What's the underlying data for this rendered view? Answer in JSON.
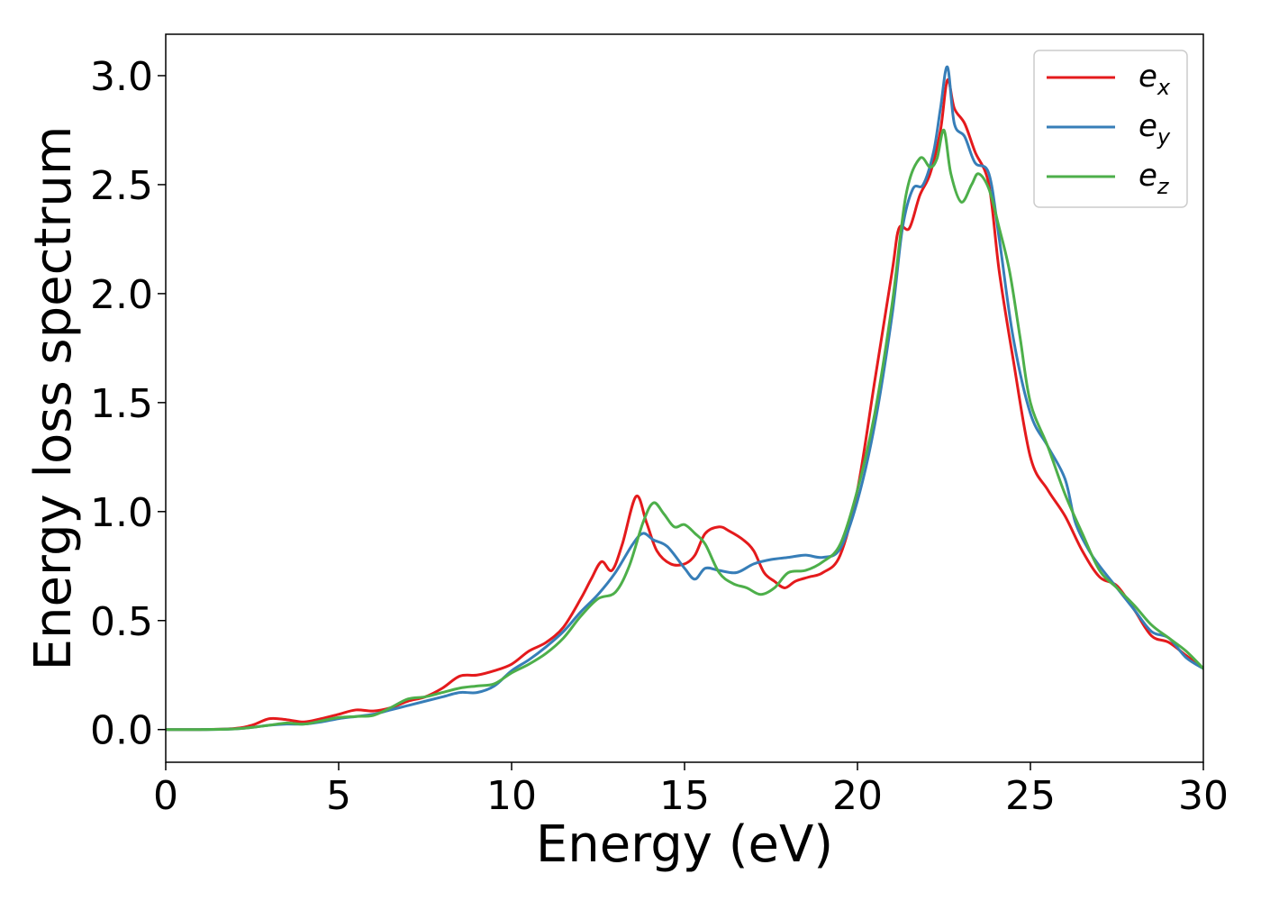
{
  "chart_data": {
    "type": "line",
    "xlabel": "Energy (eV)",
    "ylabel": "Energy loss spectrum",
    "xlim": [
      0,
      30
    ],
    "ylim": [
      -0.15,
      3.19
    ],
    "xticks": [
      0,
      5,
      10,
      15,
      20,
      25,
      30
    ],
    "yticks": [
      0.0,
      0.5,
      1.0,
      1.5,
      2.0,
      2.5,
      3.0
    ],
    "xtick_labels": [
      "0",
      "5",
      "10",
      "15",
      "20",
      "25",
      "30"
    ],
    "ytick_labels": [
      "0.0",
      "0.5",
      "1.0",
      "1.5",
      "2.0",
      "2.5",
      "3.0"
    ],
    "grid": false,
    "legend": "top-right",
    "series": [
      {
        "name": "e_x",
        "label_base": "e",
        "label_sub": "x",
        "color": "#e41a1c",
        "points": [
          [
            0,
            0
          ],
          [
            1,
            0
          ],
          [
            2,
            0.005
          ],
          [
            2.5,
            0.02
          ],
          [
            3,
            0.05
          ],
          [
            3.5,
            0.045
          ],
          [
            4,
            0.035
          ],
          [
            4.5,
            0.05
          ],
          [
            5,
            0.07
          ],
          [
            5.5,
            0.09
          ],
          [
            6,
            0.085
          ],
          [
            6.5,
            0.1
          ],
          [
            7,
            0.13
          ],
          [
            7.5,
            0.15
          ],
          [
            8,
            0.19
          ],
          [
            8.5,
            0.245
          ],
          [
            9,
            0.25
          ],
          [
            9.5,
            0.27
          ],
          [
            10,
            0.3
          ],
          [
            10.5,
            0.36
          ],
          [
            11,
            0.4
          ],
          [
            11.5,
            0.47
          ],
          [
            12,
            0.6
          ],
          [
            12.3,
            0.69
          ],
          [
            12.6,
            0.77
          ],
          [
            12.9,
            0.73
          ],
          [
            13.2,
            0.85
          ],
          [
            13.6,
            1.07
          ],
          [
            13.9,
            0.95
          ],
          [
            14.2,
            0.82
          ],
          [
            14.6,
            0.76
          ],
          [
            15,
            0.76
          ],
          [
            15.3,
            0.8
          ],
          [
            15.6,
            0.9
          ],
          [
            16,
            0.93
          ],
          [
            16.3,
            0.91
          ],
          [
            16.7,
            0.87
          ],
          [
            17,
            0.82
          ],
          [
            17.3,
            0.72
          ],
          [
            17.6,
            0.68
          ],
          [
            17.9,
            0.65
          ],
          [
            18.2,
            0.68
          ],
          [
            18.6,
            0.7
          ],
          [
            19,
            0.72
          ],
          [
            19.5,
            0.8
          ],
          [
            20,
            1.1
          ],
          [
            20.5,
            1.6
          ],
          [
            21,
            2.1
          ],
          [
            21.2,
            2.3
          ],
          [
            21.5,
            2.3
          ],
          [
            21.8,
            2.45
          ],
          [
            22.1,
            2.55
          ],
          [
            22.4,
            2.75
          ],
          [
            22.6,
            2.98
          ],
          [
            22.8,
            2.85
          ],
          [
            23.1,
            2.78
          ],
          [
            23.4,
            2.65
          ],
          [
            23.8,
            2.5
          ],
          [
            24.1,
            2.1
          ],
          [
            24.5,
            1.7
          ],
          [
            25,
            1.25
          ],
          [
            25.5,
            1.1
          ],
          [
            26,
            0.98
          ],
          [
            26.5,
            0.82
          ],
          [
            27,
            0.7
          ],
          [
            27.5,
            0.66
          ],
          [
            28,
            0.55
          ],
          [
            28.5,
            0.43
          ],
          [
            29,
            0.4
          ],
          [
            29.5,
            0.34
          ],
          [
            30,
            0.28
          ]
        ]
      },
      {
        "name": "e_y",
        "label_base": "e",
        "label_sub": "y",
        "color": "#377eb8",
        "points": [
          [
            0,
            0
          ],
          [
            1,
            0
          ],
          [
            2,
            0.003
          ],
          [
            2.5,
            0.01
          ],
          [
            3,
            0.02
          ],
          [
            3.5,
            0.025
          ],
          [
            4,
            0.025
          ],
          [
            4.5,
            0.035
          ],
          [
            5,
            0.05
          ],
          [
            5.5,
            0.06
          ],
          [
            6,
            0.07
          ],
          [
            6.5,
            0.09
          ],
          [
            7,
            0.11
          ],
          [
            7.5,
            0.13
          ],
          [
            8,
            0.15
          ],
          [
            8.5,
            0.17
          ],
          [
            9,
            0.17
          ],
          [
            9.5,
            0.2
          ],
          [
            10,
            0.27
          ],
          [
            10.5,
            0.32
          ],
          [
            11,
            0.38
          ],
          [
            11.5,
            0.45
          ],
          [
            12,
            0.54
          ],
          [
            12.5,
            0.62
          ],
          [
            13,
            0.72
          ],
          [
            13.5,
            0.85
          ],
          [
            13.8,
            0.9
          ],
          [
            14.1,
            0.87
          ],
          [
            14.5,
            0.84
          ],
          [
            15,
            0.74
          ],
          [
            15.3,
            0.69
          ],
          [
            15.6,
            0.74
          ],
          [
            16,
            0.73
          ],
          [
            16.5,
            0.72
          ],
          [
            17,
            0.76
          ],
          [
            17.5,
            0.78
          ],
          [
            18,
            0.79
          ],
          [
            18.5,
            0.8
          ],
          [
            19,
            0.79
          ],
          [
            19.5,
            0.83
          ],
          [
            20,
            1.05
          ],
          [
            20.5,
            1.4
          ],
          [
            21,
            1.9
          ],
          [
            21.3,
            2.3
          ],
          [
            21.6,
            2.48
          ],
          [
            21.9,
            2.5
          ],
          [
            22.2,
            2.65
          ],
          [
            22.4,
            2.85
          ],
          [
            22.6,
            3.04
          ],
          [
            22.8,
            2.78
          ],
          [
            23.1,
            2.72
          ],
          [
            23.4,
            2.6
          ],
          [
            23.8,
            2.55
          ],
          [
            24.1,
            2.25
          ],
          [
            24.5,
            1.8
          ],
          [
            25,
            1.45
          ],
          [
            25.5,
            1.3
          ],
          [
            26,
            1.15
          ],
          [
            26.3,
            0.95
          ],
          [
            26.7,
            0.82
          ],
          [
            27,
            0.75
          ],
          [
            27.5,
            0.65
          ],
          [
            28,
            0.55
          ],
          [
            28.5,
            0.45
          ],
          [
            29,
            0.42
          ],
          [
            29.5,
            0.33
          ],
          [
            30,
            0.28
          ]
        ]
      },
      {
        "name": "e_z",
        "label_base": "e",
        "label_sub": "z",
        "color": "#4daf4a",
        "points": [
          [
            0,
            0
          ],
          [
            1,
            0
          ],
          [
            2,
            0.003
          ],
          [
            2.5,
            0.01
          ],
          [
            3,
            0.02
          ],
          [
            3.5,
            0.03
          ],
          [
            4,
            0.025
          ],
          [
            4.5,
            0.04
          ],
          [
            5,
            0.055
          ],
          [
            5.5,
            0.06
          ],
          [
            6,
            0.065
          ],
          [
            6.5,
            0.1
          ],
          [
            7,
            0.14
          ],
          [
            7.5,
            0.15
          ],
          [
            8,
            0.17
          ],
          [
            8.5,
            0.19
          ],
          [
            9,
            0.2
          ],
          [
            9.5,
            0.21
          ],
          [
            10,
            0.26
          ],
          [
            10.5,
            0.3
          ],
          [
            11,
            0.35
          ],
          [
            11.5,
            0.42
          ],
          [
            12,
            0.52
          ],
          [
            12.5,
            0.6
          ],
          [
            13,
            0.63
          ],
          [
            13.4,
            0.75
          ],
          [
            13.8,
            0.95
          ],
          [
            14.1,
            1.04
          ],
          [
            14.4,
            0.99
          ],
          [
            14.7,
            0.93
          ],
          [
            15,
            0.94
          ],
          [
            15.3,
            0.9
          ],
          [
            15.6,
            0.85
          ],
          [
            16,
            0.72
          ],
          [
            16.4,
            0.67
          ],
          [
            16.8,
            0.65
          ],
          [
            17.2,
            0.62
          ],
          [
            17.6,
            0.65
          ],
          [
            18,
            0.72
          ],
          [
            18.5,
            0.73
          ],
          [
            19,
            0.77
          ],
          [
            19.5,
            0.85
          ],
          [
            20,
            1.1
          ],
          [
            20.5,
            1.45
          ],
          [
            21,
            1.95
          ],
          [
            21.4,
            2.45
          ],
          [
            21.8,
            2.62
          ],
          [
            22.1,
            2.58
          ],
          [
            22.3,
            2.62
          ],
          [
            22.5,
            2.75
          ],
          [
            22.7,
            2.55
          ],
          [
            23,
            2.42
          ],
          [
            23.3,
            2.5
          ],
          [
            23.5,
            2.55
          ],
          [
            23.8,
            2.48
          ],
          [
            24.1,
            2.3
          ],
          [
            24.4,
            2.1
          ],
          [
            24.7,
            1.8
          ],
          [
            25,
            1.5
          ],
          [
            25.5,
            1.3
          ],
          [
            26,
            1.08
          ],
          [
            26.5,
            0.9
          ],
          [
            27,
            0.73
          ],
          [
            27.5,
            0.65
          ],
          [
            28,
            0.57
          ],
          [
            28.5,
            0.48
          ],
          [
            29,
            0.42
          ],
          [
            29.5,
            0.36
          ],
          [
            30,
            0.28
          ]
        ]
      }
    ]
  }
}
